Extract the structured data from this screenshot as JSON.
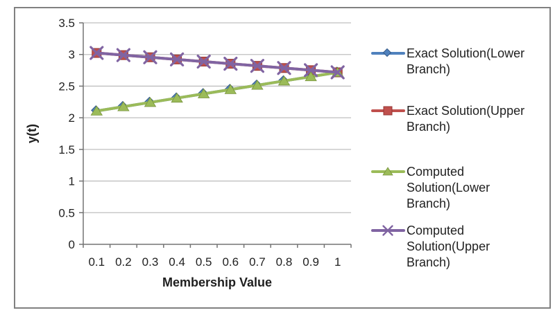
{
  "colors": {
    "border": "#808080",
    "axis": "#737373",
    "gridline": "#BFBFBF",
    "text": "#1f1f1f",
    "background": "#ffffff",
    "series_blue": "#4F81BD",
    "series_red": "#C0504D",
    "series_green": "#9BBB59",
    "series_purple": "#8064A2"
  },
  "chart_data": {
    "type": "line",
    "title": "",
    "xlabel": "Membership Value",
    "ylabel": "y(t)",
    "x": [
      0.1,
      0.2,
      0.3,
      0.4,
      0.5,
      0.6,
      0.7,
      0.8,
      0.9,
      1.0
    ],
    "x_tick_labels": [
      "0.1",
      "0.2",
      "0.3",
      "0.4",
      "0.5",
      "0.6",
      "0.7",
      "0.8",
      "0.9",
      "1"
    ],
    "ylim": [
      0,
      3.5
    ],
    "y_tick_values": [
      0,
      0.5,
      1,
      1.5,
      2,
      2.5,
      3,
      3.5
    ],
    "y_tick_labels": [
      "0",
      "0.5",
      "1",
      "1.5",
      "2",
      "2.5",
      "3",
      "3.5"
    ],
    "grid": true,
    "legend_position": "right",
    "series": [
      {
        "name": "Exact Solution(Lower Branch)",
        "legend_lines": [
          "Exact Solution(Lower",
          "Branch)"
        ],
        "color": "#4F81BD",
        "edge_color": "#385D8A",
        "marker": "diamond",
        "values": [
          2.107,
          2.175,
          2.243,
          2.311,
          2.379,
          2.446,
          2.514,
          2.582,
          2.65,
          2.718
        ]
      },
      {
        "name": "Exact Solution(Upper Branch)",
        "legend_lines": [
          "Exact Solution(Upper",
          "Branch)"
        ],
        "color": "#C0504D",
        "edge_color": "#943634",
        "marker": "square",
        "values": [
          3.024,
          2.99,
          2.956,
          2.922,
          2.888,
          2.854,
          2.82,
          2.786,
          2.752,
          2.718
        ]
      },
      {
        "name": "Computed Solution(Lower Branch)",
        "legend_lines": [
          "Computed",
          "Solution(Lower",
          "Branch)"
        ],
        "color": "#9BBB59",
        "edge_color": "#77933C",
        "marker": "triangle",
        "values": [
          2.107,
          2.175,
          2.243,
          2.311,
          2.379,
          2.446,
          2.514,
          2.582,
          2.65,
          2.718
        ]
      },
      {
        "name": "Computed Solution(Upper Branch)",
        "legend_lines": [
          "Computed",
          "Solution(Upper",
          "Branch)"
        ],
        "color": "#8064A2",
        "edge_color": "#60497A",
        "marker": "x",
        "values": [
          3.024,
          2.99,
          2.956,
          2.922,
          2.888,
          2.854,
          2.82,
          2.786,
          2.752,
          2.718
        ]
      }
    ]
  }
}
